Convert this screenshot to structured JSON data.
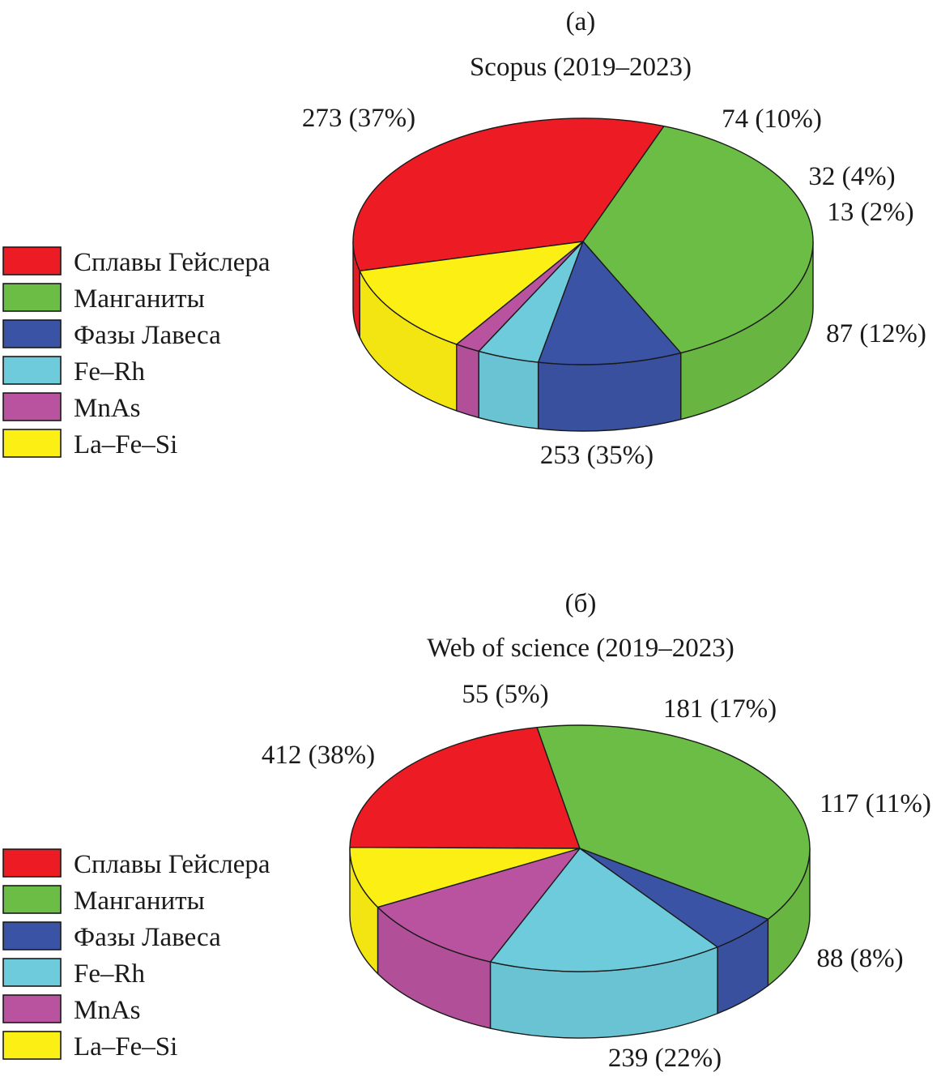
{
  "chart_data": [
    {
      "type": "pie",
      "label": "(а)",
      "title": "Scopus (2019–2023)",
      "legend_placement": "left",
      "slices": [
        {
          "name": "Сплавы Гейслера",
          "value": 253,
          "percent": "35%",
          "label": "253 (35%)",
          "color": "#ed1c24"
        },
        {
          "name": "Манганиты",
          "value": 273,
          "percent": "37%",
          "label": "273 (37%)",
          "color": "#6cbd45"
        },
        {
          "name": "Фазы Лавеса",
          "value": 74,
          "percent": "10%",
          "label": "74 (10%)",
          "color": "#3a53a4"
        },
        {
          "name": "Fe–Rh",
          "value": 32,
          "percent": "4%",
          "label": "32 (4%)",
          "color": "#6dcbdc"
        },
        {
          "name": "MnAs",
          "value": 13,
          "percent": "2%",
          "label": "13 (2%)",
          "color": "#b9529f"
        },
        {
          "name": "La–Fe–Si",
          "value": 87,
          "percent": "12%",
          "label": "87 (12%)",
          "color": "#fcef13"
        }
      ]
    },
    {
      "type": "pie",
      "label": "(б)",
      "title": "Web of science (2019–2023)",
      "legend_placement": "left",
      "slices": [
        {
          "name": "Сплавы Гейслера",
          "value": 239,
          "percent": "22%",
          "label": "239 (22%)",
          "color": "#ed1c24"
        },
        {
          "name": "Манганиты",
          "value": 412,
          "percent": "38%",
          "label": "412 (38%)",
          "color": "#6cbd45"
        },
        {
          "name": "Фазы Лавеса",
          "value": 55,
          "percent": "5%",
          "label": "55 (5%)",
          "color": "#3a53a4"
        },
        {
          "name": "Fe–Rh",
          "value": 181,
          "percent": "17%",
          "label": "181 (17%)",
          "color": "#6dcbdc"
        },
        {
          "name": "MnAs",
          "value": 117,
          "percent": "11%",
          "label": "117 (11%)",
          "color": "#b9529f"
        },
        {
          "name": "La–Fe–Si",
          "value": 88,
          "percent": "8%",
          "label": "88 (8%)",
          "color": "#fcef13"
        }
      ]
    }
  ]
}
